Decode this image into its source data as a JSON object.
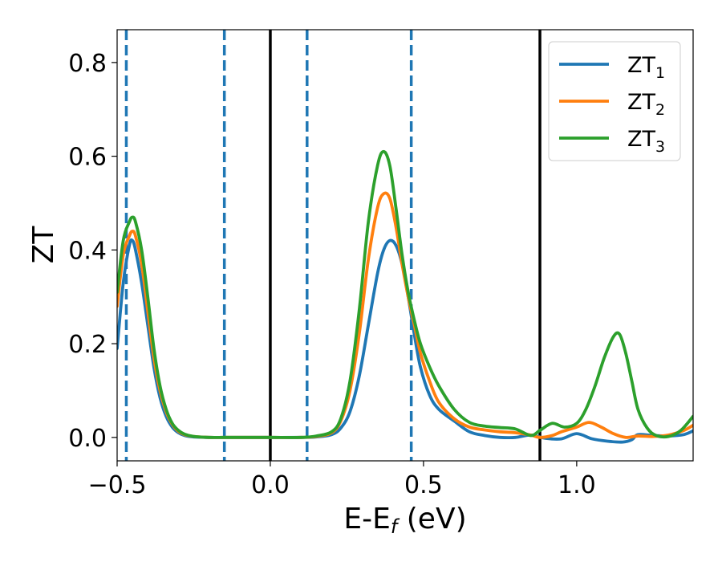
{
  "chart_data": {
    "type": "line",
    "title": "",
    "xlabel": "E-E",
    "xlabel_sub": "f",
    "xlabel_unit": " (eV)",
    "ylabel": "ZT",
    "xlim": [
      -0.5,
      1.38
    ],
    "ylim": [
      -0.05,
      0.87
    ],
    "x_ticks": [
      -0.5,
      0.0,
      0.5,
      1.0
    ],
    "x_tick_labels": [
      "−0.5",
      "0.0",
      "0.5",
      "1.0"
    ],
    "y_ticks": [
      0.0,
      0.2,
      0.4,
      0.6,
      0.8
    ],
    "y_tick_labels": [
      "0.0",
      "0.2",
      "0.4",
      "0.6",
      "0.8"
    ],
    "grid": false,
    "legend_position": "top-right",
    "vlines_solid": [
      0.0,
      0.88
    ],
    "vlines_dashed": [
      -0.47,
      -0.15,
      0.12,
      0.46
    ],
    "vline_solid_color": "#000000",
    "vline_dashed_color": "#1f77b4",
    "series": [
      {
        "label_base": "ZT",
        "label_sub": "1",
        "color": "#1f77b4",
        "x": [
          -0.5,
          -0.48,
          -0.46,
          -0.45,
          -0.44,
          -0.42,
          -0.4,
          -0.38,
          -0.36,
          -0.34,
          -0.32,
          -0.3,
          -0.28,
          -0.25,
          -0.2,
          -0.15,
          -0.1,
          0.0,
          0.1,
          0.15,
          0.2,
          0.23,
          0.26,
          0.29,
          0.32,
          0.35,
          0.37,
          0.39,
          0.41,
          0.43,
          0.45,
          0.47,
          0.49,
          0.52,
          0.55,
          0.6,
          0.65,
          0.7,
          0.75,
          0.8,
          0.85,
          0.9,
          0.95,
          1.0,
          1.05,
          1.1,
          1.15,
          1.18,
          1.2,
          1.25,
          1.3,
          1.35,
          1.38
        ],
        "y": [
          0.19,
          0.33,
          0.41,
          0.42,
          0.4,
          0.33,
          0.24,
          0.15,
          0.085,
          0.045,
          0.022,
          0.01,
          0.004,
          0.001,
          0.0,
          0.0,
          0.0,
          0.0,
          0.0,
          0.001,
          0.006,
          0.02,
          0.055,
          0.13,
          0.24,
          0.35,
          0.4,
          0.42,
          0.41,
          0.37,
          0.3,
          0.22,
          0.15,
          0.09,
          0.06,
          0.035,
          0.012,
          0.004,
          0.0,
          0.0,
          0.005,
          -0.002,
          -0.003,
          0.008,
          -0.003,
          -0.008,
          -0.01,
          -0.005,
          0.006,
          0.004,
          0.003,
          0.006,
          0.014
        ]
      },
      {
        "label_base": "ZT",
        "label_sub": "2",
        "color": "#ff7f0e",
        "x": [
          -0.5,
          -0.48,
          -0.46,
          -0.45,
          -0.44,
          -0.42,
          -0.4,
          -0.38,
          -0.36,
          -0.34,
          -0.32,
          -0.3,
          -0.28,
          -0.25,
          -0.2,
          -0.15,
          -0.1,
          0.0,
          0.1,
          0.15,
          0.2,
          0.23,
          0.26,
          0.29,
          0.32,
          0.35,
          0.37,
          0.39,
          0.41,
          0.43,
          0.45,
          0.47,
          0.49,
          0.52,
          0.55,
          0.6,
          0.65,
          0.7,
          0.75,
          0.8,
          0.85,
          0.88,
          0.92,
          0.95,
          1.0,
          1.04,
          1.08,
          1.12,
          1.16,
          1.2,
          1.25,
          1.3,
          1.35,
          1.38
        ],
        "y": [
          0.28,
          0.39,
          0.43,
          0.44,
          0.43,
          0.37,
          0.27,
          0.17,
          0.1,
          0.055,
          0.028,
          0.013,
          0.006,
          0.002,
          0.0,
          0.0,
          0.0,
          0.0,
          0.0,
          0.002,
          0.01,
          0.035,
          0.1,
          0.22,
          0.38,
          0.49,
          0.52,
          0.51,
          0.45,
          0.37,
          0.3,
          0.24,
          0.18,
          0.12,
          0.075,
          0.04,
          0.022,
          0.016,
          0.012,
          0.01,
          0.005,
          0.0,
          0.004,
          0.012,
          0.022,
          0.032,
          0.022,
          0.008,
          0.0,
          0.003,
          0.002,
          0.005,
          0.015,
          0.026
        ]
      },
      {
        "label_base": "ZT",
        "label_sub": "3",
        "color": "#2ca02c",
        "x": [
          -0.5,
          -0.48,
          -0.46,
          -0.45,
          -0.44,
          -0.42,
          -0.4,
          -0.38,
          -0.36,
          -0.34,
          -0.32,
          -0.3,
          -0.28,
          -0.25,
          -0.2,
          -0.15,
          -0.1,
          0.0,
          0.1,
          0.15,
          0.2,
          0.23,
          0.26,
          0.29,
          0.32,
          0.35,
          0.37,
          0.39,
          0.41,
          0.43,
          0.45,
          0.47,
          0.49,
          0.52,
          0.55,
          0.6,
          0.65,
          0.7,
          0.75,
          0.8,
          0.85,
          0.88,
          0.92,
          0.96,
          1.0,
          1.03,
          1.06,
          1.09,
          1.12,
          1.14,
          1.16,
          1.18,
          1.2,
          1.23,
          1.26,
          1.3,
          1.34,
          1.38
        ],
        "y": [
          0.31,
          0.42,
          0.46,
          0.47,
          0.46,
          0.4,
          0.3,
          0.19,
          0.11,
          0.06,
          0.03,
          0.015,
          0.007,
          0.002,
          0.0,
          0.0,
          0.0,
          0.0,
          0.0,
          0.003,
          0.012,
          0.04,
          0.12,
          0.27,
          0.46,
          0.58,
          0.61,
          0.58,
          0.49,
          0.39,
          0.31,
          0.25,
          0.2,
          0.15,
          0.11,
          0.06,
          0.032,
          0.024,
          0.021,
          0.018,
          0.004,
          0.015,
          0.03,
          0.022,
          0.03,
          0.06,
          0.11,
          0.17,
          0.215,
          0.22,
          0.18,
          0.12,
          0.06,
          0.02,
          0.004,
          0.002,
          0.015,
          0.045
        ]
      }
    ]
  }
}
